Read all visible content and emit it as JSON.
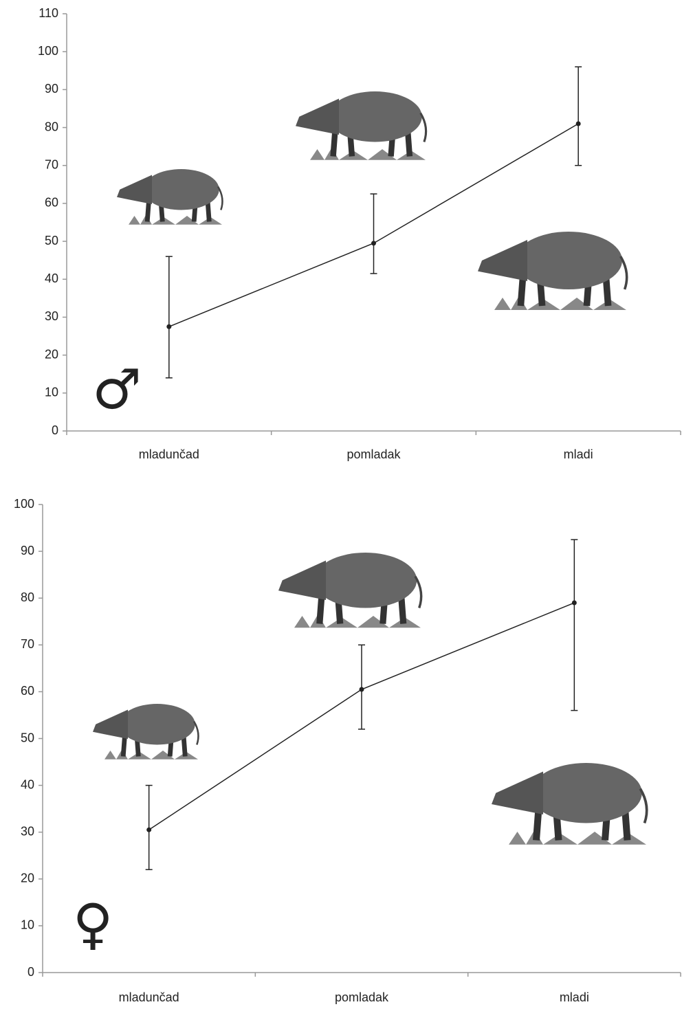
{
  "chart_data": [
    {
      "type": "line",
      "symbol": "♂",
      "categories": [
        "mladunčad",
        "pomladak",
        "mladi"
      ],
      "values": [
        27.5,
        49.5,
        81
      ],
      "lower": [
        14,
        41.5,
        70
      ],
      "upper": [
        46,
        62.5,
        96
      ],
      "color": "#222222",
      "ylim": [
        0,
        110
      ],
      "yticks": [
        0,
        10,
        20,
        30,
        40,
        50,
        60,
        70,
        80,
        90,
        100,
        110
      ]
    },
    {
      "type": "line",
      "symbol": "♀",
      "categories": [
        "mladunčad",
        "pomladak",
        "mladi"
      ],
      "values": [
        30.5,
        60.5,
        79
      ],
      "lower": [
        22,
        52,
        56
      ],
      "upper": [
        40,
        70,
        92.5
      ],
      "color": "#222222",
      "ylim": [
        0,
        100
      ],
      "yticks": [
        0,
        10,
        20,
        30,
        40,
        50,
        60,
        70,
        80,
        90,
        100
      ]
    }
  ]
}
